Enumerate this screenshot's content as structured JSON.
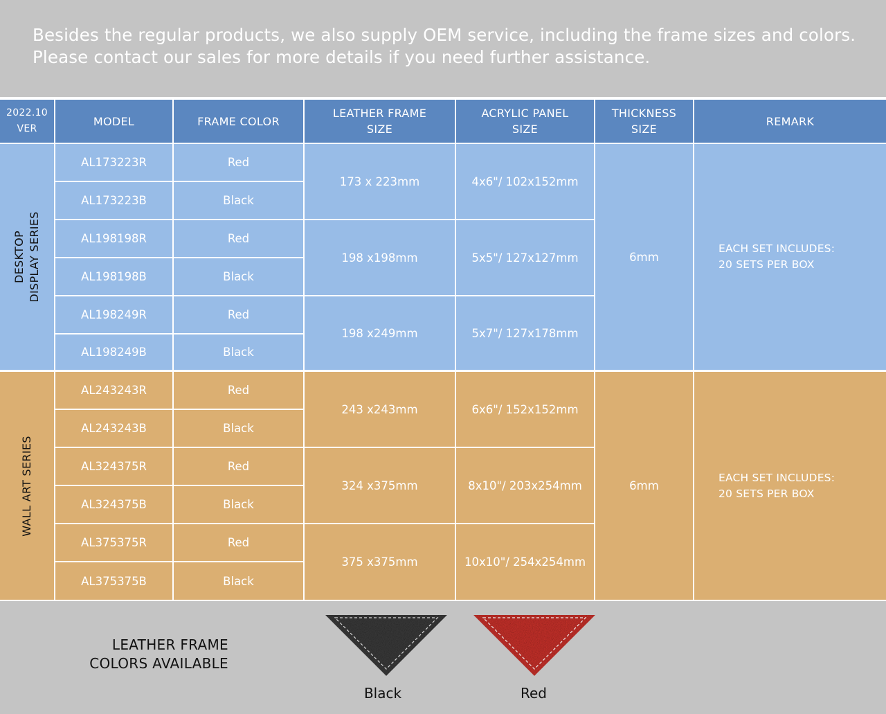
{
  "intro": {
    "line1": "Besides the regular products, we also supply OEM service, including the frame sizes and colors.",
    "line2": "Please contact our sales for more details if you need further assistance."
  },
  "header": {
    "version_line1": "2022.10",
    "version_line2": "VER",
    "model": "MODEL",
    "frame_color": "FRAME COLOR",
    "leather_line1": "LEATHER FRAME",
    "leather_line2": "SIZE",
    "acrylic_line1": "ACRYLIC PANEL",
    "acrylic_line2": "SIZE",
    "thickness_line1": "THICKNESS",
    "thickness_line2": "SIZE",
    "remark": "REMARK"
  },
  "desktop": {
    "series_line1": "DESKTOP",
    "series_line2": "DISPLAY SERIES",
    "rows": [
      {
        "model": "AL173223R",
        "color": "Red"
      },
      {
        "model": "AL173223B",
        "color": "Black"
      },
      {
        "model": "AL198198R",
        "color": "Red"
      },
      {
        "model": "AL198198B",
        "color": "Black"
      },
      {
        "model": "AL198249R",
        "color": "Red"
      },
      {
        "model": "AL198249B",
        "color": "Black"
      }
    ],
    "sizes": [
      {
        "leather": "173 x 223mm",
        "acrylic": "4x6\"/ 102x152mm"
      },
      {
        "leather": "198 x198mm",
        "acrylic": "5x5\"/ 127x127mm"
      },
      {
        "leather": "198 x249mm",
        "acrylic": "5x7\"/ 127x178mm"
      }
    ],
    "thickness": "6mm",
    "remark_line1": "EACH SET INCLUDES:",
    "remark_line2": "20 SETS PER BOX"
  },
  "wall": {
    "series_line1": "WALL ART SERIES",
    "rows": [
      {
        "model": "AL243243R",
        "color": "Red"
      },
      {
        "model": "AL243243B",
        "color": "Black"
      },
      {
        "model": "AL324375R",
        "color": "Red"
      },
      {
        "model": "AL324375B",
        "color": "Black"
      },
      {
        "model": "AL375375R",
        "color": "Red"
      },
      {
        "model": "AL375375B",
        "color": "Black"
      }
    ],
    "sizes": [
      {
        "leather": "243 x243mm",
        "acrylic": "6x6\"/ 152x152mm"
      },
      {
        "leather": "324 x375mm",
        "acrylic": "8x10\"/ 203x254mm"
      },
      {
        "leather": "375 x375mm",
        "acrylic": "10x10\"/ 254x254mm"
      }
    ],
    "thickness": "6mm",
    "remark_line1": "EACH SET INCLUDES:",
    "remark_line2": "20 SETS PER BOX"
  },
  "footer": {
    "title_line1": "LEATHER FRAME",
    "title_line2": "COLORS AVAILABLE",
    "swatches": [
      {
        "label": "Black",
        "color": "#3a3a3a"
      },
      {
        "label": "Red",
        "color": "#c8322b"
      }
    ]
  }
}
